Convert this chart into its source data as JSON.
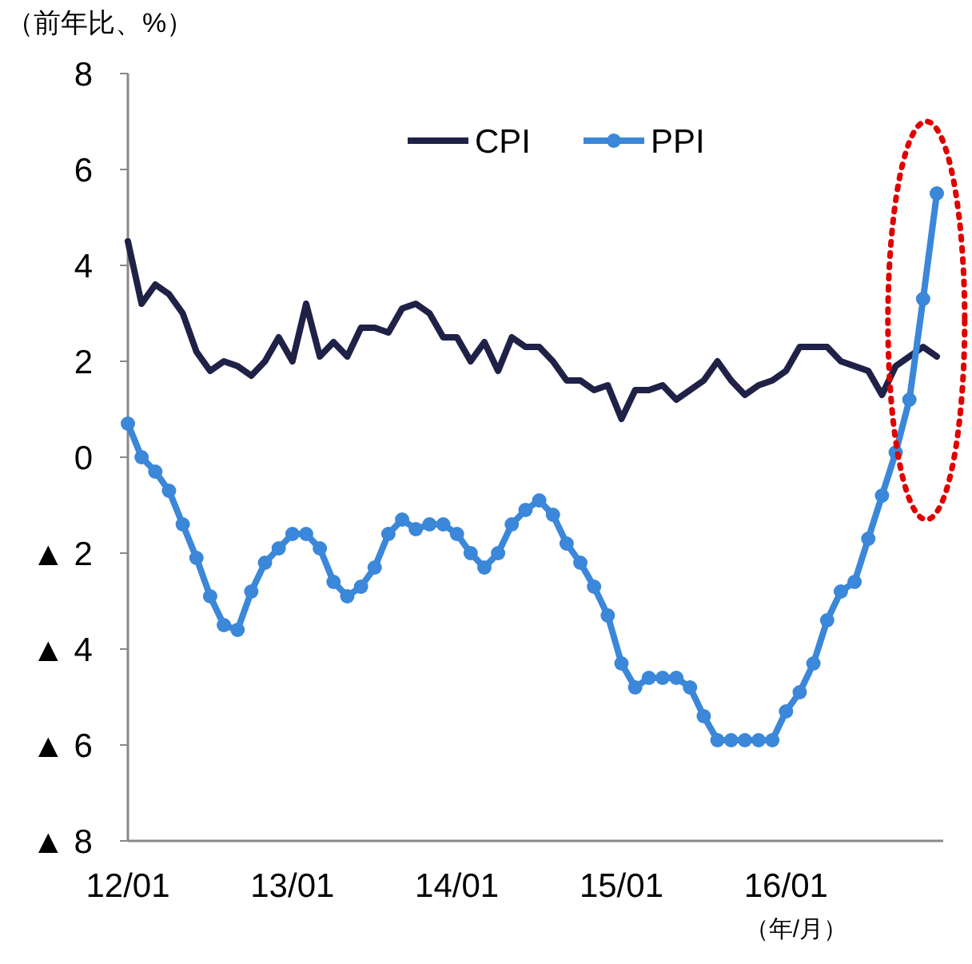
{
  "chart_data": {
    "type": "line",
    "ylabel": "（前年比、%）",
    "xlabel": "（年/月）",
    "categories": [
      "12/01",
      null,
      null,
      null,
      null,
      null,
      null,
      null,
      null,
      null,
      null,
      null,
      "13/01",
      null,
      null,
      null,
      null,
      null,
      null,
      null,
      null,
      null,
      null,
      null,
      "14/01",
      null,
      null,
      null,
      null,
      null,
      null,
      null,
      null,
      null,
      null,
      null,
      "15/01",
      null,
      null,
      null,
      null,
      null,
      null,
      null,
      null,
      null,
      null,
      null,
      "16/01",
      null,
      null,
      null,
      null,
      null,
      null,
      null,
      null,
      null,
      null,
      null
    ],
    "ylim": [
      -8,
      8
    ],
    "yticks": [
      {
        "value": -8,
        "label": "▲ 8"
      },
      {
        "value": -6,
        "label": "▲ 6"
      },
      {
        "value": -4,
        "label": "▲ 4"
      },
      {
        "value": -2,
        "label": "▲ 2"
      },
      0,
      2,
      4,
      6,
      8
    ],
    "grid": false,
    "legend": "top",
    "series": [
      {
        "name": "CPI",
        "color": "#1f2147",
        "marker": "none",
        "values": [
          4.5,
          3.2,
          3.6,
          3.4,
          3.0,
          2.2,
          1.8,
          2.0,
          1.9,
          1.7,
          2.0,
          2.5,
          2.0,
          3.2,
          2.1,
          2.4,
          2.1,
          2.7,
          2.7,
          2.6,
          3.1,
          3.2,
          3.0,
          2.5,
          2.5,
          2.0,
          2.4,
          1.8,
          2.5,
          2.3,
          2.3,
          2.0,
          1.6,
          1.6,
          1.4,
          1.5,
          0.8,
          1.4,
          1.4,
          1.5,
          1.2,
          1.4,
          1.6,
          2.0,
          1.6,
          1.3,
          1.5,
          1.6,
          1.8,
          2.3,
          2.3,
          2.3,
          2.0,
          1.9,
          1.8,
          1.3,
          1.9,
          2.1,
          2.3,
          2.1
        ]
      },
      {
        "name": "PPI",
        "color": "#3b87d9",
        "marker": "circle",
        "values": [
          0.7,
          0.0,
          -0.3,
          -0.7,
          -1.4,
          -2.1,
          -2.9,
          -3.5,
          -3.6,
          -2.8,
          -2.2,
          -1.9,
          -1.6,
          -1.6,
          -1.9,
          -2.6,
          -2.9,
          -2.7,
          -2.3,
          -1.6,
          -1.3,
          -1.5,
          -1.4,
          -1.4,
          -1.6,
          -2.0,
          -2.3,
          -2.0,
          -1.4,
          -1.1,
          -0.9,
          -1.2,
          -1.8,
          -2.2,
          -2.7,
          -3.3,
          -4.3,
          -4.8,
          -4.6,
          -4.6,
          -4.6,
          -4.8,
          -5.4,
          -5.9,
          -5.9,
          -5.9,
          -5.9,
          -5.9,
          -5.3,
          -4.9,
          -4.3,
          -3.4,
          -2.8,
          -2.6,
          -1.7,
          -0.8,
          0.1,
          1.2,
          3.3,
          5.5
        ]
      }
    ]
  }
}
